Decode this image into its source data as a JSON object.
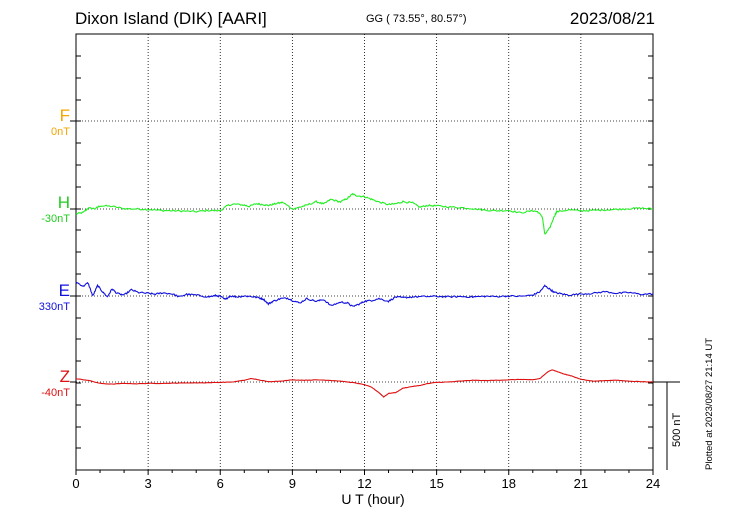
{
  "header": {
    "title": "Dixon Island (DIK)  [AARI]",
    "coords": "GG ( 73.55°,  80.57°)",
    "date": "2023/08/21"
  },
  "chart_data": {
    "type": "line",
    "xlabel": "U T (hour)",
    "xlim": [
      0,
      24
    ],
    "xticks": [
      0,
      3,
      6,
      9,
      12,
      15,
      18,
      21,
      24
    ],
    "xtick_labels": [
      "0",
      "3",
      "6",
      "9",
      "12",
      "15",
      "18",
      "21",
      "24"
    ],
    "scale_bar": "500 nT",
    "series": [
      {
        "name": "F",
        "offset": "0nT",
        "color": "#f5a400",
        "points": []
      },
      {
        "name": "H",
        "offset": "-30nT",
        "color": "#22ee22",
        "points": [
          [
            0,
            -28
          ],
          [
            0.3,
            -20
          ],
          [
            0.5,
            5
          ],
          [
            0.8,
            2
          ],
          [
            1,
            18
          ],
          [
            1.5,
            15
          ],
          [
            2,
            2
          ],
          [
            2.5,
            0
          ],
          [
            3,
            -2
          ],
          [
            3.5,
            -8
          ],
          [
            4,
            -10
          ],
          [
            4.5,
            -12
          ],
          [
            5,
            -15
          ],
          [
            5.5,
            -8
          ],
          [
            6,
            -10
          ],
          [
            6.3,
            20
          ],
          [
            6.6,
            28
          ],
          [
            7,
            22
          ],
          [
            7.2,
            15
          ],
          [
            7.5,
            30
          ],
          [
            7.8,
            25
          ],
          [
            8,
            20
          ],
          [
            8.3,
            30
          ],
          [
            8.6,
            38
          ],
          [
            9,
            0
          ],
          [
            9.3,
            10
          ],
          [
            9.6,
            22
          ],
          [
            10,
            42
          ],
          [
            10.3,
            28
          ],
          [
            10.6,
            55
          ],
          [
            11,
            40
          ],
          [
            11.3,
            62
          ],
          [
            11.5,
            85
          ],
          [
            11.7,
            75
          ],
          [
            12,
            70
          ],
          [
            12.3,
            55
          ],
          [
            12.6,
            40
          ],
          [
            13,
            25
          ],
          [
            13.3,
            30
          ],
          [
            13.6,
            42
          ],
          [
            14,
            35
          ],
          [
            14.3,
            10
          ],
          [
            14.6,
            20
          ],
          [
            15,
            18
          ],
          [
            15.5,
            12
          ],
          [
            16,
            8
          ],
          [
            16.5,
            2
          ],
          [
            17,
            -6
          ],
          [
            17.5,
            -10
          ],
          [
            18,
            -8
          ],
          [
            18.5,
            -22
          ],
          [
            19,
            -10
          ],
          [
            19.2,
            -15
          ],
          [
            19.4,
            -45
          ],
          [
            19.5,
            -145
          ],
          [
            19.7,
            -110
          ],
          [
            19.9,
            -40
          ],
          [
            20,
            -15
          ],
          [
            20.5,
            -5
          ],
          [
            21,
            -10
          ],
          [
            21.5,
            -8
          ],
          [
            22,
            -5
          ],
          [
            22.5,
            -2
          ],
          [
            23,
            2
          ],
          [
            23.5,
            5
          ],
          [
            24,
            0
          ]
        ]
      },
      {
        "name": "E",
        "offset": "330nT",
        "color": "#1010dd",
        "points": [
          [
            0,
            80
          ],
          [
            0.3,
            55
          ],
          [
            0.5,
            75
          ],
          [
            0.7,
            0
          ],
          [
            0.9,
            60
          ],
          [
            1.1,
            25
          ],
          [
            1.3,
            -5
          ],
          [
            1.5,
            40
          ],
          [
            1.7,
            15
          ],
          [
            2,
            5
          ],
          [
            2.3,
            35
          ],
          [
            2.6,
            20
          ],
          [
            3,
            15
          ],
          [
            3.3,
            10
          ],
          [
            3.6,
            18
          ],
          [
            4,
            12
          ],
          [
            4.3,
            -5
          ],
          [
            4.6,
            10
          ],
          [
            5,
            5
          ],
          [
            5.5,
            -5
          ],
          [
            5.8,
            2
          ],
          [
            6,
            -2
          ],
          [
            6.2,
            -20
          ],
          [
            6.4,
            0
          ],
          [
            6.7,
            -5
          ],
          [
            7,
            0
          ],
          [
            7.3,
            -3
          ],
          [
            7.6,
            -10
          ],
          [
            7.8,
            -18
          ],
          [
            8,
            -45
          ],
          [
            8.2,
            -30
          ],
          [
            8.5,
            -15
          ],
          [
            8.8,
            -12
          ],
          [
            9,
            -25
          ],
          [
            9.3,
            -40
          ],
          [
            9.6,
            -15
          ],
          [
            10,
            -30
          ],
          [
            10.3,
            -20
          ],
          [
            10.6,
            -55
          ],
          [
            11,
            -35
          ],
          [
            11.3,
            -40
          ],
          [
            11.5,
            -60
          ],
          [
            11.8,
            -45
          ],
          [
            12,
            -30
          ],
          [
            12.3,
            -25
          ],
          [
            12.6,
            -15
          ],
          [
            13,
            -30
          ],
          [
            13.3,
            -5
          ],
          [
            13.6,
            -10
          ],
          [
            14,
            -5
          ],
          [
            14.5,
            -3
          ],
          [
            15,
            -2
          ],
          [
            15.5,
            -5
          ],
          [
            16,
            -3
          ],
          [
            16.5,
            -5
          ],
          [
            17,
            -2
          ],
          [
            17.5,
            -3
          ],
          [
            18,
            0
          ],
          [
            18.5,
            -2
          ],
          [
            19,
            5
          ],
          [
            19.3,
            25
          ],
          [
            19.5,
            58
          ],
          [
            19.7,
            40
          ],
          [
            19.9,
            20
          ],
          [
            20.2,
            12
          ],
          [
            20.5,
            5
          ],
          [
            21,
            12
          ],
          [
            21.5,
            15
          ],
          [
            22,
            25
          ],
          [
            22.5,
            15
          ],
          [
            23,
            20
          ],
          [
            23.5,
            10
          ],
          [
            24,
            12
          ]
        ]
      },
      {
        "name": "Z",
        "offset": "-40nT",
        "color": "#dd1010",
        "points": [
          [
            0,
            18
          ],
          [
            0.5,
            10
          ],
          [
            1,
            -8
          ],
          [
            1.5,
            -12
          ],
          [
            2,
            -8
          ],
          [
            2.5,
            -10
          ],
          [
            3,
            -8
          ],
          [
            3.5,
            -8
          ],
          [
            4,
            -7
          ],
          [
            4.5,
            -5
          ],
          [
            5,
            -5
          ],
          [
            5.5,
            -4
          ],
          [
            6,
            -2
          ],
          [
            6.5,
            0
          ],
          [
            7,
            10
          ],
          [
            7.3,
            20
          ],
          [
            7.6,
            12
          ],
          [
            8,
            2
          ],
          [
            8.5,
            5
          ],
          [
            9,
            12
          ],
          [
            9.5,
            10
          ],
          [
            10,
            12
          ],
          [
            10.5,
            10
          ],
          [
            11,
            5
          ],
          [
            11.3,
            0
          ],
          [
            11.6,
            -5
          ],
          [
            12,
            -15
          ],
          [
            12.3,
            -30
          ],
          [
            12.6,
            -60
          ],
          [
            12.8,
            -85
          ],
          [
            13,
            -65
          ],
          [
            13.3,
            -60
          ],
          [
            13.6,
            -35
          ],
          [
            14,
            -25
          ],
          [
            14.3,
            -20
          ],
          [
            14.6,
            -10
          ],
          [
            15,
            -2
          ],
          [
            15.5,
            0
          ],
          [
            16,
            5
          ],
          [
            16.5,
            10
          ],
          [
            17,
            8
          ],
          [
            17.5,
            10
          ],
          [
            18,
            12
          ],
          [
            18.5,
            15
          ],
          [
            19,
            12
          ],
          [
            19.3,
            20
          ],
          [
            19.6,
            55
          ],
          [
            19.8,
            70
          ],
          [
            20,
            60
          ],
          [
            20.3,
            45
          ],
          [
            20.6,
            35
          ],
          [
            21,
            15
          ],
          [
            21.5,
            5
          ],
          [
            22,
            8
          ],
          [
            22.5,
            10
          ],
          [
            23,
            5
          ],
          [
            23.5,
            2
          ],
          [
            24,
            0
          ]
        ]
      }
    ]
  },
  "footer": {
    "plotted": "Plotted at 2023/08/27 21:14 UT"
  }
}
